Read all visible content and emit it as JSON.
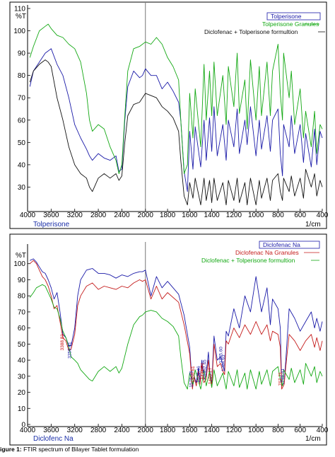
{
  "caption": {
    "label": "igure 1:",
    "text": "FTIR spectrum of Bilayer Tablet formulation"
  },
  "chart_data": [
    {
      "type": "line",
      "panel_label": "Tolperisone",
      "ylabel": "%T",
      "xlabel": "1/cm",
      "xlim": [
        4000,
        400
      ],
      "ylim": [
        20,
        110
      ],
      "x_ticks": [
        "4000",
        "3600",
        "3200",
        "2800",
        "2400",
        "2000",
        "1800",
        "1600",
        "1400",
        "1200",
        "1000",
        "800",
        "600",
        "400"
      ],
      "y_ticks": [
        "110",
        "100",
        "90",
        "80",
        "70",
        "60",
        "50",
        "40",
        "30"
      ],
      "vline": 2000,
      "series": [
        {
          "name": "Tolperisone",
          "color": "#1a1aa8",
          "x": [
            3960,
            3900,
            3800,
            3700,
            3650,
            3600,
            3500,
            3400,
            3300,
            3200,
            3100,
            3000,
            2950,
            2900,
            2800,
            2700,
            2600,
            2500,
            2450,
            2400,
            2350,
            2300,
            2200,
            2100,
            2050,
            2000,
            1950,
            1900,
            1850,
            1800,
            1750,
            1700,
            1680,
            1650,
            1620,
            1600,
            1570,
            1550,
            1500,
            1470,
            1450,
            1420,
            1400,
            1380,
            1350,
            1300,
            1270,
            1250,
            1200,
            1170,
            1150,
            1100,
            1080,
            1050,
            1000,
            970,
            950,
            900,
            870,
            850,
            800,
            780,
            760,
            750,
            700,
            680,
            650,
            600,
            570,
            550,
            500,
            470,
            450,
            420,
            400
          ],
          "y": [
            75,
            82,
            86,
            90,
            91,
            92,
            85,
            80,
            70,
            58,
            52,
            47,
            44,
            42,
            45,
            43,
            42,
            44,
            37,
            38,
            60,
            75,
            82,
            79,
            80,
            83,
            80,
            80,
            74,
            77,
            73,
            68,
            60,
            37,
            28,
            55,
            38,
            57,
            39,
            60,
            42,
            61,
            46,
            66,
            44,
            58,
            42,
            60,
            48,
            65,
            45,
            60,
            49,
            66,
            44,
            60,
            47,
            62,
            46,
            60,
            65,
            45,
            35,
            58,
            48,
            62,
            45,
            58,
            41,
            54,
            39,
            56,
            40,
            55,
            52
          ]
        },
        {
          "name": "Tolperisone Granules",
          "color": "#13a813",
          "x": [
            3960,
            3900,
            3800,
            3700,
            3650,
            3600,
            3500,
            3400,
            3300,
            3200,
            3100,
            3000,
            2950,
            2900,
            2800,
            2700,
            2600,
            2500,
            2450,
            2400,
            2350,
            2300,
            2200,
            2100,
            2050,
            2000,
            1950,
            1900,
            1850,
            1800,
            1750,
            1700,
            1680,
            1650,
            1620,
            1600,
            1570,
            1550,
            1500,
            1470,
            1450,
            1420,
            1400,
            1380,
            1350,
            1300,
            1270,
            1250,
            1200,
            1170,
            1150,
            1100,
            1080,
            1050,
            1000,
            970,
            950,
            900,
            870,
            850,
            800,
            780,
            760,
            750,
            700,
            680,
            650,
            600,
            570,
            550,
            500,
            470,
            450,
            420,
            400
          ],
          "y": [
            88,
            93,
            100,
            102,
            103,
            101,
            98,
            97,
            94,
            92,
            86,
            72,
            60,
            55,
            58,
            56,
            48,
            42,
            36,
            40,
            62,
            82,
            92,
            93,
            94,
            95,
            94,
            97,
            94,
            88,
            84,
            78,
            60,
            36,
            40,
            72,
            52,
            74,
            48,
            85,
            60,
            82,
            62,
            86,
            62,
            80,
            58,
            84,
            66,
            90,
            63,
            78,
            56,
            87,
            60,
            84,
            62,
            86,
            62,
            82,
            94,
            72,
            60,
            90,
            70,
            82,
            58,
            74,
            52,
            64,
            48,
            64,
            45,
            58,
            56
          ]
        },
        {
          "name": "Diclofenac + Tolperisone formultion",
          "color": "#111111",
          "x": [
            3960,
            3900,
            3800,
            3700,
            3650,
            3600,
            3500,
            3400,
            3300,
            3200,
            3100,
            3000,
            2950,
            2900,
            2800,
            2700,
            2600,
            2500,
            2450,
            2400,
            2350,
            2300,
            2200,
            2100,
            2050,
            2000,
            1950,
            1900,
            1850,
            1800,
            1750,
            1700,
            1680,
            1650,
            1620,
            1600,
            1570,
            1550,
            1500,
            1470,
            1450,
            1420,
            1400,
            1380,
            1350,
            1300,
            1270,
            1250,
            1200,
            1170,
            1150,
            1100,
            1080,
            1050,
            1000,
            970,
            950,
            900,
            870,
            850,
            800,
            780,
            760,
            750,
            700,
            680,
            650,
            600,
            570,
            550,
            500,
            470,
            450,
            420,
            400
          ],
          "y": [
            77,
            82,
            85,
            87,
            86,
            84,
            70,
            60,
            48,
            40,
            36,
            34,
            30,
            28,
            34,
            36,
            34,
            36,
            33,
            35,
            50,
            62,
            67,
            68,
            70,
            72,
            71,
            70,
            66,
            64,
            61,
            55,
            42,
            26,
            22,
            32,
            25,
            34,
            22,
            34,
            24,
            33,
            23,
            34,
            24,
            32,
            22,
            33,
            24,
            34,
            23,
            32,
            22,
            34,
            22,
            33,
            25,
            34,
            24,
            33,
            36,
            28,
            24,
            34,
            28,
            35,
            26,
            34,
            25,
            38,
            30,
            36,
            26,
            33,
            30
          ]
        }
      ]
    },
    {
      "type": "line",
      "panel_label": "Diclofenc Na",
      "ylabel": "%T",
      "xlabel": "1/cm",
      "xlim": [
        4000,
        400
      ],
      "ylim": [
        0,
        110
      ],
      "x_ticks": [
        "4000",
        "3600",
        "3200",
        "2800",
        "2400",
        "2000",
        "1800",
        "1600",
        "1400",
        "1200",
        "1000",
        "800",
        "600",
        "400"
      ],
      "y_ticks": [
        "100",
        "90",
        "80",
        "70",
        "60",
        "50",
        "40",
        "30",
        "20",
        "10",
        "0"
      ],
      "vline": 2000,
      "annotations": [
        {
          "text": "3388.81",
          "x": 3388,
          "y": 46,
          "color": "#cc1111"
        },
        {
          "text": "3259.81",
          "x": 3260,
          "y": 41,
          "color": "#1a1aa8"
        },
        {
          "text": "1575.75",
          "x": 1575,
          "y": 23,
          "color": "#1a1aa8"
        },
        {
          "text": "1556.61",
          "x": 1556,
          "y": 26,
          "color": "#cc1111"
        },
        {
          "text": "1506.46",
          "x": 1506,
          "y": 26,
          "color": "#1a1aa8"
        },
        {
          "text": "1471.74",
          "x": 1471,
          "y": 28,
          "color": "#cc1111"
        },
        {
          "text": "1452.45",
          "x": 1452,
          "y": 30,
          "color": "#1a1aa8"
        },
        {
          "text": "1400.27",
          "x": 1400,
          "y": 25,
          "color": "#cc1111"
        },
        {
          "text": "1305.60",
          "x": 1305,
          "y": 38,
          "color": "#1a1aa8"
        },
        {
          "text": "1284.63",
          "x": 1284,
          "y": 33,
          "color": "#1a1aa8"
        },
        {
          "text": "767.71",
          "x": 767,
          "y": 24,
          "color": "#cc1111"
        },
        {
          "text": "745.41",
          "x": 745,
          "y": 26,
          "color": "#1a1aa8"
        }
      ],
      "series": [
        {
          "name": "Diclofenac Na",
          "color": "#1a1aa8",
          "x": [
            3960,
            3900,
            3850,
            3800,
            3750,
            3700,
            3650,
            3600,
            3550,
            3500,
            3450,
            3400,
            3350,
            3300,
            3260,
            3200,
            3150,
            3100,
            3000,
            2900,
            2800,
            2700,
            2600,
            2500,
            2400,
            2300,
            2200,
            2100,
            2050,
            2000,
            1950,
            1900,
            1850,
            1800,
            1700,
            1650,
            1600,
            1575,
            1560,
            1540,
            1520,
            1506,
            1490,
            1471,
            1452,
            1430,
            1420,
            1400,
            1380,
            1350,
            1320,
            1305,
            1284,
            1270,
            1250,
            1200,
            1150,
            1100,
            1050,
            1000,
            950,
            900,
            870,
            850,
            800,
            780,
            767,
            745,
            730,
            700,
            650,
            600,
            550,
            500,
            470,
            450,
            420,
            400
          ],
          "y": [
            102,
            103,
            101,
            98,
            95,
            94,
            90,
            85,
            78,
            82,
            70,
            56,
            54,
            49,
            49,
            60,
            80,
            90,
            96,
            97,
            94,
            94,
            93,
            91,
            93,
            92,
            94,
            95,
            95,
            96,
            80,
            92,
            85,
            89,
            81,
            68,
            48,
            23,
            30,
            26,
            35,
            26,
            40,
            28,
            30,
            45,
            34,
            25,
            55,
            40,
            42,
            38,
            33,
            58,
            55,
            72,
            60,
            80,
            70,
            92,
            70,
            85,
            62,
            78,
            72,
            60,
            24,
            26,
            40,
            72,
            66,
            58,
            64,
            70,
            60,
            66,
            58,
            64
          ]
        },
        {
          "name": "Diclofenac Na Granules",
          "color": "#c41a1a",
          "x": [
            3960,
            3900,
            3850,
            3800,
            3750,
            3700,
            3650,
            3600,
            3550,
            3500,
            3450,
            3400,
            3350,
            3300,
            3260,
            3200,
            3150,
            3100,
            3000,
            2900,
            2800,
            2700,
            2600,
            2500,
            2400,
            2300,
            2200,
            2100,
            2050,
            2000,
            1950,
            1900,
            1850,
            1800,
            1700,
            1650,
            1600,
            1575,
            1560,
            1540,
            1520,
            1506,
            1490,
            1471,
            1452,
            1430,
            1420,
            1400,
            1380,
            1350,
            1320,
            1305,
            1284,
            1270,
            1250,
            1200,
            1150,
            1100,
            1050,
            1000,
            950,
            900,
            870,
            850,
            800,
            780,
            767,
            745,
            730,
            700,
            650,
            600,
            550,
            500,
            470,
            450,
            420,
            400
          ],
          "y": [
            100,
            102,
            100,
            96,
            92,
            90,
            86,
            80,
            72,
            74,
            64,
            54,
            52,
            46,
            47,
            56,
            74,
            80,
            86,
            88,
            84,
            86,
            85,
            84,
            86,
            85,
            88,
            90,
            89,
            90,
            78,
            86,
            78,
            82,
            76,
            62,
            44,
            22,
            30,
            24,
            33,
            25,
            37,
            26,
            28,
            40,
            32,
            23,
            50,
            36,
            38,
            34,
            31,
            52,
            50,
            60,
            54,
            62,
            56,
            64,
            56,
            62,
            52,
            58,
            56,
            48,
            22,
            25,
            36,
            56,
            52,
            46,
            52,
            56,
            48,
            54,
            46,
            52
          ]
        },
        {
          "name": "Diclofenac + Tolperisone formultion",
          "color": "#13a813",
          "x": [
            3960,
            3900,
            3850,
            3800,
            3750,
            3700,
            3650,
            3600,
            3550,
            3500,
            3450,
            3400,
            3350,
            3300,
            3260,
            3200,
            3150,
            3100,
            3000,
            2950,
            2900,
            2800,
            2700,
            2600,
            2500,
            2450,
            2400,
            2300,
            2200,
            2100,
            2050,
            2000,
            1950,
            1900,
            1850,
            1800,
            1750,
            1700,
            1680,
            1650,
            1620,
            1600,
            1570,
            1550,
            1500,
            1470,
            1450,
            1420,
            1400,
            1380,
            1350,
            1300,
            1270,
            1250,
            1200,
            1170,
            1150,
            1100,
            1080,
            1050,
            1000,
            970,
            950,
            900,
            870,
            850,
            800,
            780,
            760,
            750,
            700,
            680,
            650,
            600,
            570,
            550,
            500,
            470,
            450,
            420,
            400
          ],
          "y": [
            79,
            82,
            85,
            86,
            87,
            86,
            82,
            78,
            73,
            72,
            66,
            58,
            54,
            48,
            42,
            40,
            38,
            34,
            30,
            28,
            27,
            33,
            36,
            33,
            36,
            32,
            35,
            50,
            62,
            67,
            68,
            70,
            71,
            70,
            66,
            64,
            61,
            55,
            42,
            26,
            22,
            32,
            25,
            34,
            22,
            34,
            24,
            33,
            23,
            34,
            24,
            32,
            22,
            33,
            24,
            34,
            23,
            32,
            22,
            34,
            22,
            33,
            25,
            34,
            24,
            33,
            36,
            28,
            24,
            34,
            28,
            35,
            26,
            34,
            25,
            38,
            30,
            36,
            26,
            33,
            30
          ]
        }
      ]
    }
  ]
}
